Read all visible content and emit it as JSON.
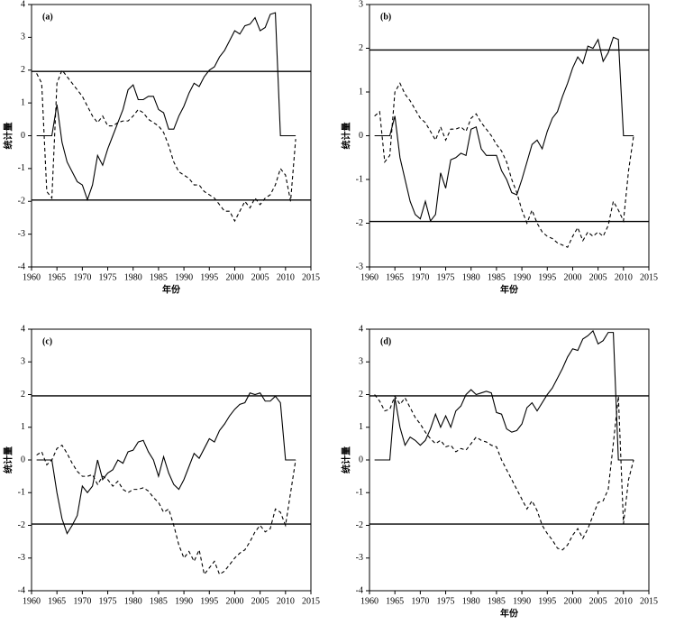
{
  "chart_data": [
    {
      "type": "line",
      "title": "(a)",
      "xlabel": "年份",
      "ylabel": "统计量",
      "xlim": [
        1960,
        2015
      ],
      "xticks": [
        1960,
        1965,
        1970,
        1975,
        1980,
        1985,
        1990,
        1995,
        2000,
        2005,
        2010,
        2015
      ],
      "ylim": [
        -4,
        4
      ],
      "yticks": [
        -4,
        -3,
        -2,
        -1,
        0,
        1,
        2,
        3,
        4
      ],
      "reference_lines": [
        1.96,
        -1.96
      ],
      "x": [
        1961,
        1962,
        1963,
        1964,
        1965,
        1966,
        1967,
        1968,
        1969,
        1970,
        1971,
        1972,
        1973,
        1974,
        1975,
        1976,
        1977,
        1978,
        1979,
        1980,
        1981,
        1982,
        1983,
        1984,
        1985,
        1986,
        1987,
        1988,
        1989,
        1990,
        1991,
        1992,
        1993,
        1994,
        1995,
        1996,
        1997,
        1998,
        1999,
        2000,
        2001,
        2002,
        2003,
        2004,
        2005,
        2006,
        2007,
        2008,
        2009,
        2010,
        2011,
        2012
      ],
      "series": [
        {
          "color": "#000000",
          "dash": "solid",
          "values": [
            0,
            0,
            0,
            0,
            0.95,
            -0.2,
            -0.8,
            -1.1,
            -1.4,
            -1.5,
            -1.95,
            -1.5,
            -0.6,
            -0.9,
            -0.4,
            0,
            0.4,
            0.8,
            1.4,
            1.55,
            1.1,
            1.1,
            1.2,
            1.2,
            0.8,
            0.7,
            0.2,
            0.2,
            0.6,
            0.9,
            1.3,
            1.6,
            1.5,
            1.8,
            2.0,
            2.1,
            2.4,
            2.6,
            2.9,
            3.2,
            3.1,
            3.35,
            3.4,
            3.6,
            3.2,
            3.3,
            3.7,
            3.75,
            0,
            0,
            0,
            0
          ]
        },
        {
          "color": "#000000",
          "dash": "dashed",
          "values": [
            1.9,
            1.6,
            -1.7,
            -1.9,
            1.6,
            2.0,
            1.8,
            1.6,
            1.4,
            1.2,
            0.9,
            0.6,
            0.4,
            0.6,
            0.3,
            0.3,
            0.4,
            0.45,
            0.45,
            0.6,
            0.8,
            0.7,
            0.5,
            0.4,
            0.3,
            0.1,
            -0.3,
            -0.8,
            -1.1,
            -1.2,
            -1.3,
            -1.5,
            -1.5,
            -1.7,
            -1.8,
            -1.9,
            -2.1,
            -2.3,
            -2.3,
            -2.6,
            -2.3,
            -2.0,
            -2.2,
            -1.9,
            -2.1,
            -1.9,
            -1.8,
            -1.5,
            -1.0,
            -1.2,
            -2.0,
            -0.1
          ]
        }
      ]
    },
    {
      "type": "line",
      "title": "(b)",
      "xlabel": "年份",
      "ylabel": "统计量",
      "xlim": [
        1960,
        2015
      ],
      "xticks": [
        1960,
        1965,
        1970,
        1975,
        1980,
        1985,
        1990,
        1995,
        2000,
        2005,
        2010,
        2015
      ],
      "ylim": [
        -3,
        3
      ],
      "yticks": [
        -3,
        -2,
        -1,
        0,
        1,
        2,
        3
      ],
      "reference_lines": [
        1.96,
        -1.96
      ],
      "x": [
        1961,
        1962,
        1963,
        1964,
        1965,
        1966,
        1967,
        1968,
        1969,
        1970,
        1971,
        1972,
        1973,
        1974,
        1975,
        1976,
        1977,
        1978,
        1979,
        1980,
        1981,
        1982,
        1983,
        1984,
        1985,
        1986,
        1987,
        1988,
        1989,
        1990,
        1991,
        1992,
        1993,
        1994,
        1995,
        1996,
        1997,
        1998,
        1999,
        2000,
        2001,
        2002,
        2003,
        2004,
        2005,
        2006,
        2007,
        2008,
        2009,
        2010,
        2011,
        2012
      ],
      "series": [
        {
          "color": "#000000",
          "dash": "solid",
          "values": [
            0,
            0,
            0,
            0,
            0.45,
            -0.5,
            -1.0,
            -1.5,
            -1.8,
            -1.9,
            -1.5,
            -1.95,
            -1.8,
            -0.85,
            -1.2,
            -0.55,
            -0.5,
            -0.4,
            -0.45,
            0.15,
            0.2,
            -0.3,
            -0.45,
            -0.45,
            -0.45,
            -0.8,
            -1.0,
            -1.3,
            -1.35,
            -1.0,
            -0.6,
            -0.2,
            -0.1,
            -0.3,
            0.1,
            0.4,
            0.55,
            0.9,
            1.2,
            1.55,
            1.8,
            1.65,
            2.05,
            2.0,
            2.2,
            1.7,
            1.9,
            2.25,
            2.2,
            0,
            0,
            0
          ]
        },
        {
          "color": "#000000",
          "dash": "dashed",
          "values": [
            0.45,
            0.55,
            -0.6,
            -0.45,
            1.0,
            1.2,
            0.95,
            0.8,
            0.6,
            0.4,
            0.3,
            0.1,
            -0.1,
            0.2,
            -0.1,
            0.15,
            0.15,
            0.2,
            0.1,
            0.4,
            0.5,
            0.3,
            0.15,
            0,
            -0.2,
            -0.35,
            -0.6,
            -1.0,
            -1.3,
            -1.7,
            -2.0,
            -1.7,
            -2.0,
            -2.2,
            -2.3,
            -2.35,
            -2.45,
            -2.5,
            -2.55,
            -2.3,
            -2.1,
            -2.4,
            -2.2,
            -2.3,
            -2.2,
            -2.3,
            -2.05,
            -1.5,
            -1.7,
            -1.95,
            -0.8,
            0
          ]
        }
      ]
    },
    {
      "type": "line",
      "title": "(c)",
      "ylabel": "统计量",
      "xlim": [
        1960,
        2015
      ],
      "xticks": [
        1960,
        1965,
        1970,
        1975,
        1980,
        1985,
        1990,
        1995,
        2000,
        2005,
        2010,
        2015
      ],
      "ylim": [
        -4,
        4
      ],
      "yticks": [
        -4,
        -3,
        -2,
        -1,
        0,
        1,
        2,
        3,
        4
      ],
      "reference_lines": [
        1.96,
        -1.96
      ],
      "x": [
        1961,
        1962,
        1963,
        1964,
        1965,
        1966,
        1967,
        1968,
        1969,
        1970,
        1971,
        1972,
        1973,
        1974,
        1975,
        1976,
        1977,
        1978,
        1979,
        1980,
        1981,
        1982,
        1983,
        1984,
        1985,
        1986,
        1987,
        1988,
        1989,
        1990,
        1991,
        1992,
        1993,
        1994,
        1995,
        1996,
        1997,
        1998,
        1999,
        2000,
        2001,
        2002,
        2003,
        2004,
        2005,
        2006,
        2007,
        2008,
        2009,
        2010,
        2011,
        2012
      ],
      "series": [
        {
          "color": "#000000",
          "dash": "solid",
          "values": [
            0,
            0,
            0,
            0,
            -1.0,
            -1.8,
            -2.25,
            -2.0,
            -1.7,
            -0.8,
            -1.0,
            -0.8,
            0,
            -0.6,
            -0.4,
            -0.3,
            0,
            -0.1,
            0.25,
            0.3,
            0.55,
            0.6,
            0.25,
            0,
            -0.5,
            0.1,
            -0.4,
            -0.75,
            -0.9,
            -0.6,
            -0.2,
            0.2,
            0.05,
            0.35,
            0.65,
            0.55,
            0.9,
            1.1,
            1.35,
            1.55,
            1.7,
            1.75,
            2.05,
            2.0,
            2.05,
            1.8,
            1.8,
            1.95,
            1.75,
            0,
            0,
            0
          ]
        },
        {
          "color": "#000000",
          "dash": "dashed",
          "values": [
            0.15,
            0.25,
            -0.15,
            0,
            0.35,
            0.45,
            0.2,
            -0.1,
            -0.35,
            -0.5,
            -0.5,
            -0.45,
            -0.75,
            -0.5,
            -0.6,
            -0.8,
            -0.65,
            -0.9,
            -1.0,
            -0.9,
            -0.9,
            -0.85,
            -0.95,
            -1.15,
            -1.3,
            -1.6,
            -1.5,
            -2.0,
            -2.6,
            -3.0,
            -2.8,
            -3.1,
            -2.75,
            -3.5,
            -3.3,
            -3.1,
            -3.5,
            -3.4,
            -3.2,
            -3.0,
            -2.85,
            -2.75,
            -2.5,
            -2.2,
            -2.0,
            -2.2,
            -2.1,
            -1.5,
            -1.6,
            -2.0,
            -1.0,
            0
          ]
        }
      ]
    },
    {
      "type": "line",
      "title": "(d)",
      "xlabel": "年份",
      "ylabel": "统计量",
      "xlim": [
        1960,
        2015
      ],
      "xticks": [
        1960,
        1965,
        1970,
        1975,
        1980,
        1985,
        1990,
        1995,
        2000,
        2005,
        2010,
        2015
      ],
      "ylim": [
        -4,
        4
      ],
      "yticks": [
        -4,
        -3,
        -2,
        -1,
        0,
        1,
        2,
        3,
        4
      ],
      "reference_lines": [
        1.96,
        -1.96
      ],
      "x": [
        1961,
        1962,
        1963,
        1964,
        1965,
        1966,
        1967,
        1968,
        1969,
        1970,
        1971,
        1972,
        1973,
        1974,
        1975,
        1976,
        1977,
        1978,
        1979,
        1980,
        1981,
        1982,
        1983,
        1984,
        1985,
        1986,
        1987,
        1988,
        1989,
        1990,
        1991,
        1992,
        1993,
        1994,
        1995,
        1996,
        1997,
        1998,
        1999,
        2000,
        2001,
        2002,
        2003,
        2004,
        2005,
        2006,
        2007,
        2008,
        2009,
        2010,
        2011,
        2012
      ],
      "series": [
        {
          "color": "#000000",
          "dash": "solid",
          "values": [
            0,
            0,
            0,
            0,
            1.9,
            1.0,
            0.45,
            0.7,
            0.6,
            0.45,
            0.6,
            0.95,
            1.4,
            1.0,
            1.35,
            1.0,
            1.5,
            1.65,
            2.0,
            2.15,
            2.0,
            2.05,
            2.1,
            2.05,
            1.45,
            1.4,
            0.95,
            0.85,
            0.9,
            1.1,
            1.6,
            1.75,
            1.5,
            1.75,
            2.0,
            2.2,
            2.5,
            2.8,
            3.15,
            3.4,
            3.35,
            3.7,
            3.8,
            3.95,
            3.55,
            3.65,
            3.9,
            3.9,
            0,
            0,
            0,
            0
          ]
        },
        {
          "color": "#000000",
          "dash": "dashed",
          "values": [
            2.0,
            1.8,
            1.5,
            1.55,
            1.95,
            1.7,
            1.9,
            1.6,
            1.3,
            1.1,
            0.85,
            0.65,
            0.5,
            0.6,
            0.4,
            0.45,
            0.25,
            0.35,
            0.3,
            0.5,
            0.7,
            0.6,
            0.55,
            0.45,
            0.4,
            0,
            -0.3,
            -0.6,
            -0.9,
            -1.2,
            -1.5,
            -1.25,
            -1.55,
            -2.0,
            -2.25,
            -2.45,
            -2.7,
            -2.75,
            -2.6,
            -2.3,
            -2.1,
            -2.4,
            -2.1,
            -1.7,
            -1.3,
            -1.25,
            -0.9,
            0.5,
            1.95,
            -1.95,
            -0.6,
            0
          ]
        }
      ]
    }
  ]
}
